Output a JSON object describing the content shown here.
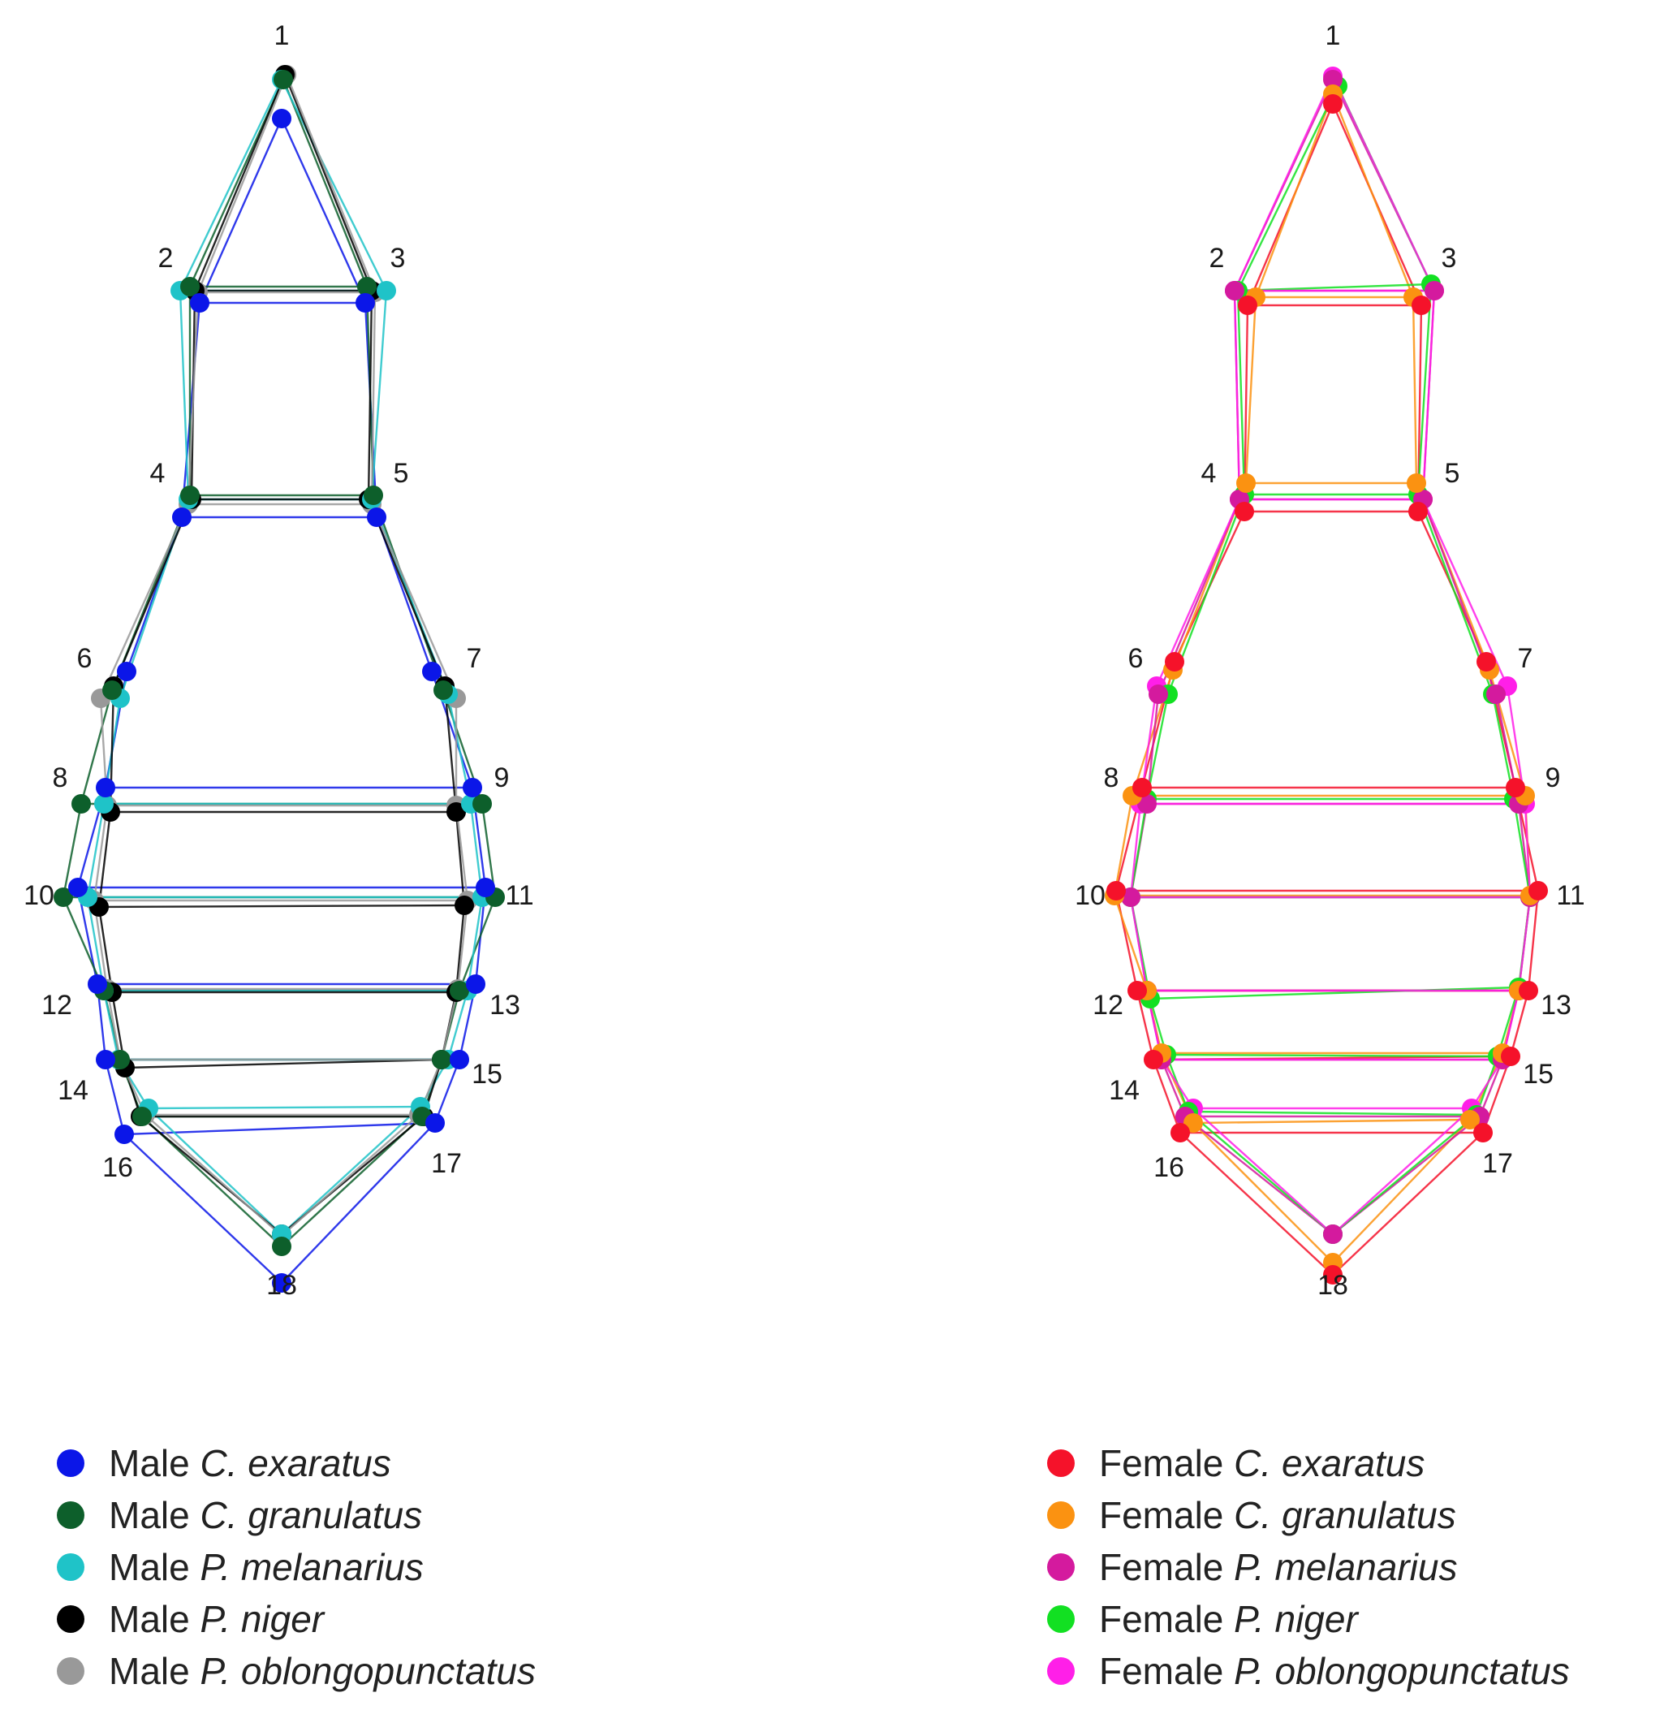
{
  "landmarks": [
    "1",
    "2",
    "3",
    "4",
    "5",
    "6",
    "7",
    "8",
    "9",
    "10",
    "11",
    "12",
    "13",
    "14",
    "15",
    "16",
    "17",
    "18"
  ],
  "groups": {
    "male": {
      "series": [
        {
          "sex": "Male",
          "species": "C. exaratus",
          "color": "#0b16e8"
        },
        {
          "sex": "Male",
          "species": "C. granulatus",
          "color": "#0d5f2b"
        },
        {
          "sex": "Male",
          "species": "P. melanarius",
          "color": "#1fc3c8"
        },
        {
          "sex": "Male",
          "species": "P. niger",
          "color": "#000000"
        },
        {
          "sex": "Male",
          "species": "P. oblongopunctatus",
          "color": "#999999"
        }
      ]
    },
    "female": {
      "series": [
        {
          "sex": "Female",
          "species": "C. exaratus",
          "color": "#f5122a"
        },
        {
          "sex": "Female",
          "species": "C. granulatus",
          "color": "#fb9211"
        },
        {
          "sex": "Female",
          "species": "P. melanarius",
          "color": "#d41a9e"
        },
        {
          "sex": "Female",
          "species": "P. niger",
          "color": "#12e022"
        },
        {
          "sex": "Female",
          "species": "P. oblongopunctatus",
          "color": "#ff1fe8"
        }
      ]
    }
  }
}
